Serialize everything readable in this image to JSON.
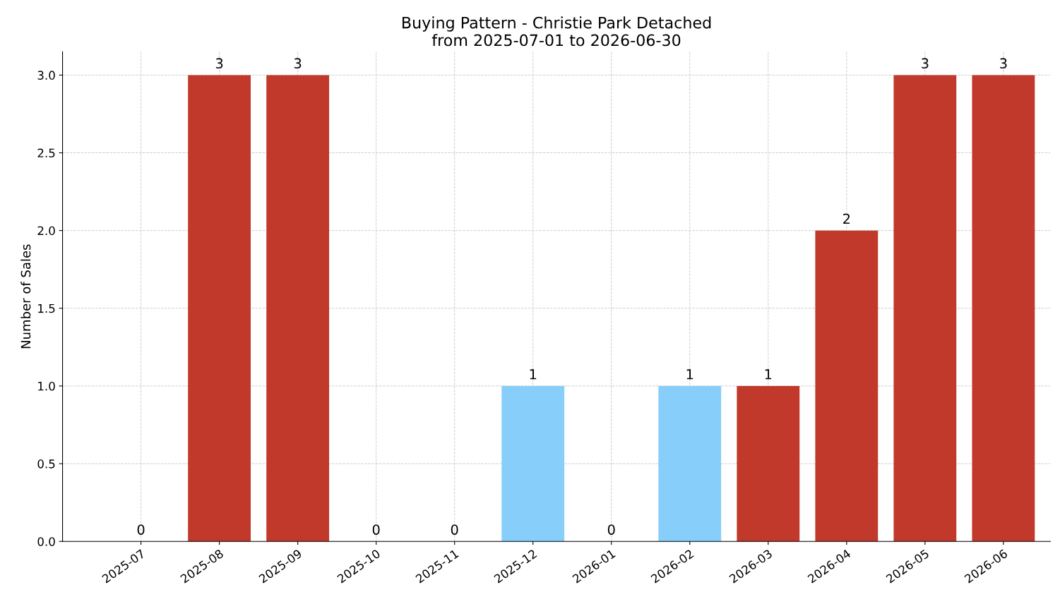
{
  "chart_data": {
    "type": "bar",
    "title": "Buying Pattern - Christie Park Detached\nfrom 2025-07-01 to 2026-06-30",
    "ylabel": "Number of Sales",
    "categories": [
      "2025-07",
      "2025-08",
      "2025-09",
      "2025-10",
      "2025-11",
      "2025-12",
      "2026-01",
      "2026-02",
      "2026-03",
      "2026-04",
      "2026-05",
      "2026-06"
    ],
    "values": [
      0,
      3,
      3,
      0,
      0,
      1,
      0,
      1,
      1,
      2,
      3,
      3
    ],
    "colors": [
      "#c0392b",
      "#c0392b",
      "#c0392b",
      "#c0392b",
      "#c0392b",
      "#87cefa",
      "#c0392b",
      "#87cefa",
      "#c0392b",
      "#c0392b",
      "#c0392b",
      "#c0392b"
    ],
    "ylim": [
      0,
      3.15
    ],
    "yticks": [
      {
        "value": 0,
        "label": "0.0"
      },
      {
        "value": 0.5,
        "label": "0.5"
      },
      {
        "value": 1,
        "label": "1.0"
      },
      {
        "value": 1.5,
        "label": "1.5"
      },
      {
        "value": 2,
        "label": "2.0"
      },
      {
        "value": 2.5,
        "label": "2.5"
      },
      {
        "value": 3,
        "label": "3.0"
      }
    ],
    "grid": true,
    "data_labels": true
  }
}
